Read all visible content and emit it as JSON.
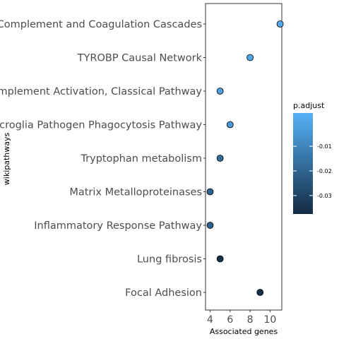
{
  "chart_data": {
    "type": "scatter",
    "title": "",
    "xlabel": "Associated genes",
    "ylabel": "wikipathways",
    "xlim": [
      3.6,
      11.6
    ],
    "x_ticks": [
      "4",
      "6",
      "8",
      "10"
    ],
    "x_tick_values": [
      4,
      6,
      8,
      10
    ],
    "grid": false,
    "legend": {
      "title": "p.adjust",
      "placement": "right",
      "range": [
        -0.0375,
        0.0035
      ],
      "tick_values": [
        -0.01,
        -0.02,
        -0.03
      ],
      "tick_labels": [
        "-0.01",
        "-0.02",
        "-0.03"
      ],
      "color_low": "#132b43",
      "color_high": "#56b1f7"
    },
    "points": [
      {
        "pathway": "Complement and Coagulation Cascades",
        "x": 11,
        "p_adjust": 0.001
      },
      {
        "pathway": "TYROBP Causal Network",
        "x": 8,
        "p_adjust": 0.0
      },
      {
        "pathway": "Complement Activation, Classical Pathway",
        "x": 5,
        "p_adjust": -0.002
      },
      {
        "pathway": "Microglia Pathogen Phagocytosis Pathway",
        "x": 6,
        "p_adjust": -0.004
      },
      {
        "pathway": "Tryptophan metabolism",
        "x": 5,
        "p_adjust": -0.018
      },
      {
        "pathway": "Matrix Metalloproteinases",
        "x": 4,
        "p_adjust": -0.02
      },
      {
        "pathway": "Inflammatory Response Pathway",
        "x": 4,
        "p_adjust": -0.021
      },
      {
        "pathway": "Lung fibrosis",
        "x": 5,
        "p_adjust": -0.036
      },
      {
        "pathway": "Focal Adhesion",
        "x": 9,
        "p_adjust": -0.036
      }
    ]
  }
}
